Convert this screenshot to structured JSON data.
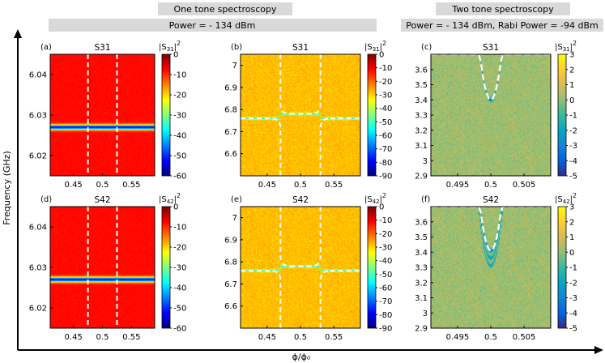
{
  "header": {
    "one_tone_title": "One tone spectroscopy",
    "one_tone_power": "Power =  - 134 dBm",
    "two_tone_title": "Two tone spectroscopy",
    "two_tone_power": "Power =  - 134 dBm, Rabi Power = -94 dBm"
  },
  "axes": {
    "ylabel": "Frequency (GHz)",
    "xlabel": "ϕ/ϕ₀"
  },
  "colors": {
    "jet_stops": [
      "#00007f",
      "#0000ff",
      "#0080ff",
      "#00ffff",
      "#80ff80",
      "#ffff00",
      "#ff8000",
      "#ff0000",
      "#7f0000"
    ],
    "parula_stops": [
      "#352a87",
      "#0363e1",
      "#1485d4",
      "#06a7c6",
      "#38b99e",
      "#92bf73",
      "#d9ba56",
      "#fcce2e",
      "#f9fb0e"
    ],
    "dashed_overlay": "#ffffff",
    "header_bar": "#d9d9d9"
  },
  "chart_data": [
    {
      "id": "a",
      "panel_label": "(a)",
      "title": "S31",
      "type": "heatmap",
      "colormap": "jet",
      "colorbar_label": "|S31|",
      "colorbar_label_sub": "31",
      "colorbar_ticks": [
        "0",
        "-10",
        "-20",
        "-30",
        "-40",
        "-50",
        "-60"
      ],
      "clim": [
        -60,
        0
      ],
      "xlim": [
        0.41,
        0.59
      ],
      "ylim": [
        6.015,
        6.045
      ],
      "xticks": [
        "0.45",
        "0.5",
        "0.55"
      ],
      "yticks": [
        "6.02",
        "6.03",
        "6.04"
      ],
      "background_value": -8,
      "resonance_frequency": 6.027,
      "dashed_lines_x": [
        0.475,
        0.525
      ]
    },
    {
      "id": "b",
      "panel_label": "(b)",
      "title": "S31",
      "type": "heatmap",
      "colormap": "jet",
      "colorbar_label": "|S31|",
      "colorbar_label_sub": "31",
      "colorbar_ticks": [
        "0",
        "-10",
        "-20",
        "-30",
        "-40",
        "-50",
        "-60",
        "-70",
        "-80",
        "-90"
      ],
      "clim": [
        -90,
        0
      ],
      "xlim": [
        0.41,
        0.59
      ],
      "ylim": [
        6.5,
        7.05
      ],
      "xticks": [
        "0.45",
        "0.5",
        "0.55"
      ],
      "yticks": [
        "6.6",
        "6.7",
        "6.8",
        "6.9",
        "7"
      ],
      "background_value": -28,
      "avoided_crossing_inner": 6.78,
      "avoided_crossing_outer": 6.76,
      "dashed_lines_x": [
        0.47,
        0.53
      ]
    },
    {
      "id": "c",
      "panel_label": "(c)",
      "title": "S31",
      "type": "heatmap",
      "colormap": "parula",
      "colorbar_label": "|S31|",
      "colorbar_label_sub": "31",
      "colorbar_ticks": [
        "3",
        "2",
        "1",
        "0",
        "-1",
        "-2",
        "-3",
        "-4",
        "-5"
      ],
      "clim": [
        -5,
        3
      ],
      "xlim": [
        0.491,
        0.509
      ],
      "ylim": [
        2.9,
        3.7
      ],
      "xticks": [
        "0.495",
        "0.5",
        "0.505"
      ],
      "yticks": [
        "2.9",
        "3",
        "3.1",
        "3.2",
        "3.3",
        "3.4",
        "3.5",
        "3.6"
      ],
      "qubit_min_frequency": 3.4,
      "qubit_curvature": 0.0075
    },
    {
      "id": "d",
      "panel_label": "(d)",
      "title": "S42",
      "type": "heatmap",
      "colormap": "jet",
      "colorbar_label": "|S42|",
      "colorbar_label_sub": "42",
      "colorbar_ticks": [
        "0",
        "-10",
        "-20",
        "-30",
        "-40",
        "-50",
        "-60"
      ],
      "clim": [
        -60,
        0
      ],
      "xlim": [
        0.41,
        0.59
      ],
      "ylim": [
        6.015,
        6.045
      ],
      "xticks": [
        "0.45",
        "0.5",
        "0.55"
      ],
      "yticks": [
        "6.02",
        "6.03",
        "6.04"
      ],
      "background_value": -8,
      "resonance_frequency": 6.027,
      "dashed_lines_x": [
        0.475,
        0.525
      ]
    },
    {
      "id": "e",
      "panel_label": "(e)",
      "title": "S42",
      "type": "heatmap",
      "colormap": "jet",
      "colorbar_label": "|S42|",
      "colorbar_label_sub": "42",
      "colorbar_ticks": [
        "0",
        "-10",
        "-20",
        "-30",
        "-40",
        "-50",
        "-60",
        "-70",
        "-80",
        "-90"
      ],
      "clim": [
        -90,
        0
      ],
      "xlim": [
        0.41,
        0.59
      ],
      "ylim": [
        6.5,
        7.05
      ],
      "xticks": [
        "0.45",
        "0.5",
        "0.55"
      ],
      "yticks": [
        "6.6",
        "6.7",
        "6.8",
        "6.9",
        "7"
      ],
      "background_value": -28,
      "avoided_crossing_inner": 6.78,
      "avoided_crossing_outer": 6.76,
      "dashed_lines_x": [
        0.47,
        0.53
      ]
    },
    {
      "id": "f",
      "panel_label": "(f)",
      "title": "S42",
      "type": "heatmap",
      "colormap": "parula",
      "colorbar_label": "|S42|",
      "colorbar_label_sub": "42",
      "colorbar_ticks": [
        "3",
        "2",
        "1",
        "0",
        "-1",
        "-2",
        "-3",
        "-4",
        "-5"
      ],
      "clim": [
        -5,
        3
      ],
      "xlim": [
        0.491,
        0.509
      ],
      "ylim": [
        2.9,
        3.7
      ],
      "xticks": [
        "0.495",
        "0.5",
        "0.505"
      ],
      "yticks": [
        "2.9",
        "3",
        "3.1",
        "3.2",
        "3.3",
        "3.4",
        "3.5",
        "3.6"
      ],
      "qubit_min_frequency": 3.41,
      "qubit_curvature": 0.0075
    }
  ]
}
